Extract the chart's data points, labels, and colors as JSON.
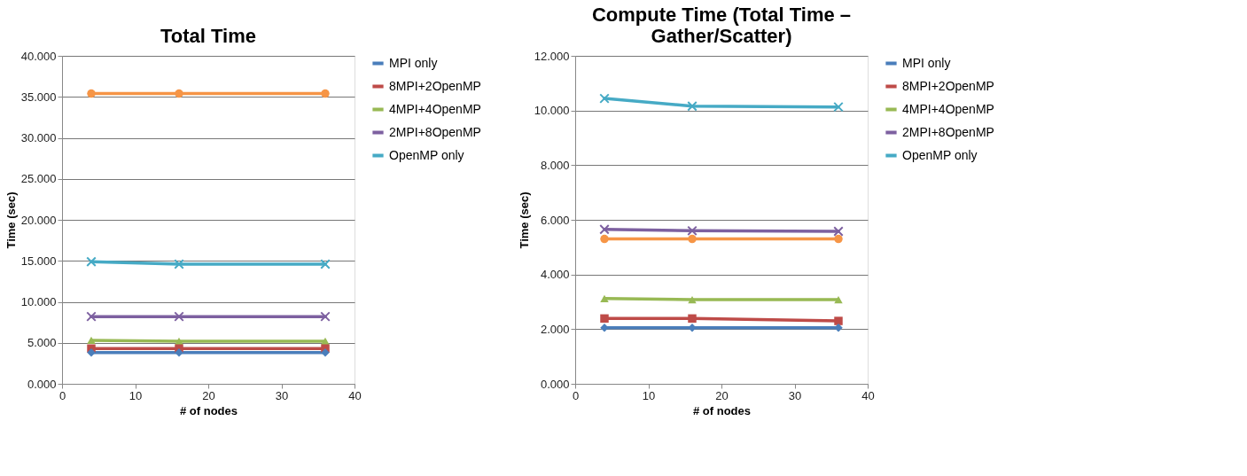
{
  "chart_data": [
    {
      "type": "line",
      "title": "Total Time",
      "xlabel": "# of nodes",
      "ylabel": "Time (sec)",
      "x": [
        4,
        16,
        36
      ],
      "xlim": [
        0,
        40
      ],
      "xticks": [
        0,
        10,
        20,
        30,
        40
      ],
      "ylim": [
        0,
        40
      ],
      "yticks": [
        {
          "value": 0,
          "label": "0.000"
        },
        {
          "value": 5,
          "label": "5.000"
        },
        {
          "value": 10,
          "label": "10.000"
        },
        {
          "value": 15,
          "label": "15.000"
        },
        {
          "value": 20,
          "label": "20.000"
        },
        {
          "value": 25,
          "label": "25.000"
        },
        {
          "value": 30,
          "label": "30.000"
        },
        {
          "value": 35,
          "label": "35.000"
        },
        {
          "value": 40,
          "label": "40.000"
        }
      ],
      "grid": "y",
      "legend": "right",
      "series": [
        {
          "name": "MPI only",
          "color": "#4a7ebb",
          "marker": "diamond",
          "values": [
            3.8,
            3.8,
            3.8
          ]
        },
        {
          "name": "8MPI+2OpenMP",
          "color": "#be4b48",
          "marker": "square",
          "values": [
            4.3,
            4.3,
            4.3
          ]
        },
        {
          "name": "4MPI+4OpenMP",
          "color": "#98b954",
          "marker": "triangle",
          "values": [
            5.3,
            5.2,
            5.2
          ]
        },
        {
          "name": "2MPI+8OpenMP",
          "color": "#7d60a0",
          "marker": "cross",
          "values": [
            8.2,
            8.2,
            8.2
          ]
        },
        {
          "name": "OpenMP only",
          "color": "#46aac5",
          "marker": "cross",
          "values": [
            14.9,
            14.6,
            14.6
          ]
        },
        {
          "color": "#f69546",
          "marker": "circle",
          "values": [
            35.4,
            35.4,
            35.4
          ]
        }
      ]
    },
    {
      "type": "line",
      "title": "Compute Time (Total Time – Gather/Scatter)",
      "xlabel": "# of nodes",
      "ylabel": "Time (sec)",
      "x": [
        4,
        16,
        36
      ],
      "xlim": [
        0,
        40
      ],
      "xticks": [
        0,
        10,
        20,
        30,
        40
      ],
      "ylim": [
        0,
        12
      ],
      "yticks": [
        {
          "value": 0,
          "label": "0.000"
        },
        {
          "value": 2,
          "label": "2.000"
        },
        {
          "value": 4,
          "label": "4.000"
        },
        {
          "value": 6,
          "label": "6.000"
        },
        {
          "value": 8,
          "label": "8.000"
        },
        {
          "value": 10,
          "label": "10.000"
        },
        {
          "value": 12,
          "label": "12.000"
        }
      ],
      "grid": "y",
      "legend": "right",
      "series": [
        {
          "name": "MPI only",
          "color": "#4a7ebb",
          "marker": "diamond",
          "values": [
            2.05,
            2.05,
            2.05
          ]
        },
        {
          "name": "8MPI+2OpenMP",
          "color": "#be4b48",
          "marker": "square",
          "values": [
            2.39,
            2.39,
            2.3
          ]
        },
        {
          "name": "4MPI+4OpenMP",
          "color": "#98b954",
          "marker": "triangle",
          "values": [
            3.12,
            3.08,
            3.08
          ]
        },
        {
          "name": "2MPI+8OpenMP",
          "color": "#7d60a0",
          "marker": "cross",
          "values": [
            5.65,
            5.6,
            5.58
          ]
        },
        {
          "name": "OpenMP only",
          "color": "#46aac5",
          "marker": "cross",
          "values": [
            10.44,
            10.16,
            10.13
          ]
        },
        {
          "color": "#f69546",
          "marker": "circle",
          "values": [
            5.3,
            5.3,
            5.3
          ]
        }
      ]
    }
  ]
}
